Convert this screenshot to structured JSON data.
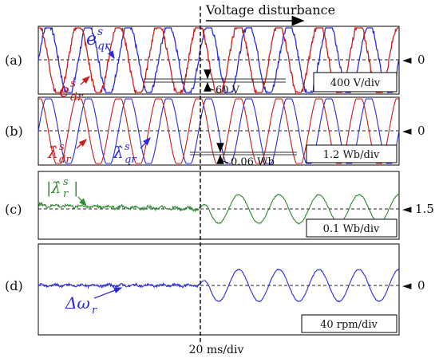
{
  "chart_data": [
    {
      "panel": "(a)",
      "type": "line",
      "scale": "400 V/div",
      "zero_marker": "0",
      "series": [
        {
          "name": "e_qr^s",
          "color": "#2b2bd6",
          "amplitude_div": 1.5,
          "cycles_per_div": 1.0,
          "phase_deg": 0
        },
        {
          "name": "e_dr^s",
          "color": "#c81e1e",
          "amplitude_div": 1.5,
          "cycles_per_div": 1.0,
          "phase_deg": 90
        }
      ],
      "annotation": "60 V",
      "labels": {
        "e_qr_main": "e",
        "e_qr_sup": "s",
        "e_qr_sub": "qr",
        "e_dr_main": "e",
        "e_dr_sup": "s",
        "e_dr_sub": "dr"
      }
    },
    {
      "panel": "(b)",
      "type": "line",
      "scale": "1.2 Wb/div",
      "zero_marker": "0",
      "series": [
        {
          "name": "λ̂_qr^s",
          "color": "#2b2bd6",
          "amplitude_div": 1.5,
          "cycles_per_div": 1.0,
          "phase_deg": 0
        },
        {
          "name": "λ̂_dr^s",
          "color": "#c81e1e",
          "amplitude_div": 1.5,
          "cycles_per_div": 1.0,
          "phase_deg": 90
        }
      ],
      "annotation": "0.06 Wb",
      "labels": {
        "l_qr_main": "λ̂",
        "l_qr_sup": "s",
        "l_qr_sub": "qr",
        "l_dr_main": "λ̂",
        "l_dr_sup": "s",
        "l_dr_sub": "dr"
      }
    },
    {
      "panel": "(c)",
      "type": "line",
      "scale": "0.1 Wb/div",
      "zero_marker": "1.5",
      "series": [
        {
          "name": "|λ̂_r^s|",
          "color": "#2e8b2e",
          "before_disturbance_ripple_div": 0.05,
          "after_disturbance_amplitude_div": 0.6,
          "cycles_per_div": 1.0
        }
      ],
      "labels": {
        "mag_main": "|λ̂",
        "mag_sup": "s",
        "mag_sub": "r",
        "mag_close": "|"
      }
    },
    {
      "panel": "(d)",
      "type": "line",
      "scale": "40 rpm/div",
      "zero_marker": "0",
      "series": [
        {
          "name": "Δω_r",
          "color": "#2b2bd6",
          "before_disturbance_ripple_div": 0.05,
          "after_disturbance_amplitude_div": 0.8,
          "cycles_per_div": 1.0
        }
      ],
      "labels": {
        "dw_main": "Δω",
        "dw_sub": "r"
      }
    }
  ],
  "disturbance_label": "Voltage disturbance",
  "time_scale": "20 ms/div",
  "disturbance_at_div": 4.0,
  "x_divisions": 9
}
